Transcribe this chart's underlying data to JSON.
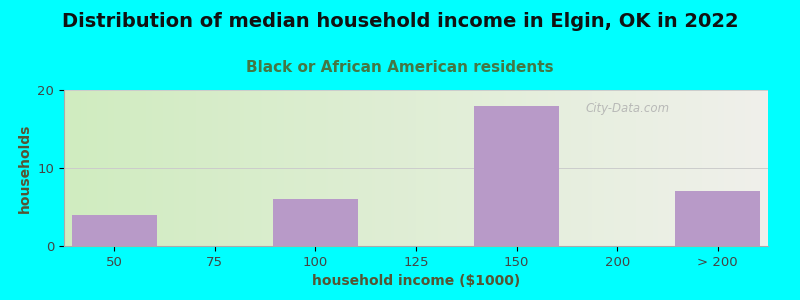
{
  "title": "Distribution of median household income in Elgin, OK in 2022",
  "subtitle": "Black or African American residents",
  "xlabel": "household income ($1000)",
  "ylabel": "households",
  "background_color": "#00FFFF",
  "plot_bg_gradient_left": "#d0ecc0",
  "plot_bg_gradient_right": "#f0f0eb",
  "bar_color": "#b89ac8",
  "categories": [
    "50",
    "75",
    "100",
    "125",
    "150",
    "200",
    "> 200"
  ],
  "values": [
    4,
    0,
    6,
    0,
    18,
    0,
    7
  ],
  "ylim": [
    0,
    20
  ],
  "yticks": [
    0,
    10,
    20
  ],
  "title_fontsize": 14,
  "subtitle_fontsize": 11,
  "label_fontsize": 10,
  "tick_fontsize": 9.5,
  "title_color": "#111111",
  "subtitle_color": "#447744",
  "axis_label_color": "#555533",
  "tick_color": "#444444",
  "watermark_text": "City-Data.com",
  "grid_color": "#cccccc",
  "grid_linewidth": 0.7
}
